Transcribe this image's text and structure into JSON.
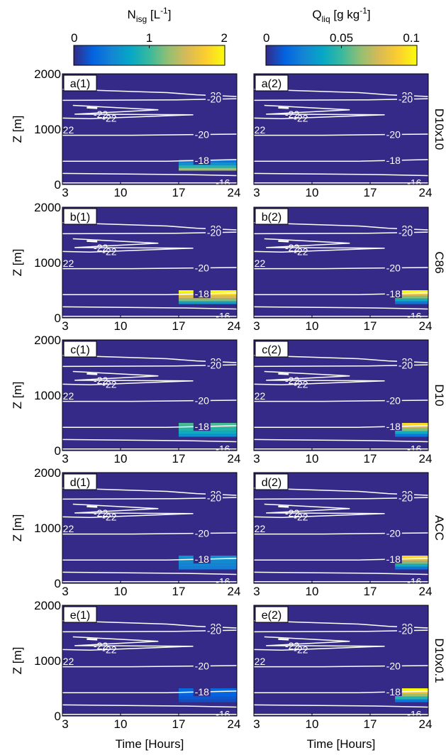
{
  "chart_data": {
    "type": "heatmap",
    "colormap": [
      "#352a87",
      "#0363e1",
      "#1485d4",
      "#06a7c6",
      "#38b99e",
      "#92bf73",
      "#d9ba56",
      "#fcce2e",
      "#f9fb0e"
    ],
    "background_color": "#352a87",
    "contour_color": "#ffffff",
    "colorbars": [
      {
        "title_main": "N",
        "title_sub": "isg",
        "title_unit_pre": " [L",
        "title_unit_sup": "-1",
        "title_unit_post": "]",
        "ticks": [
          "0",
          "1",
          "2"
        ],
        "range": [
          0,
          2
        ]
      },
      {
        "title_main": "Q",
        "title_sub": "liq",
        "title_unit_pre": " [g kg",
        "title_unit_sup": "-1",
        "title_unit_post": "]",
        "ticks": [
          "0",
          "0.05",
          "0.1"
        ],
        "range": [
          0,
          0.1
        ]
      }
    ],
    "xlabel": "Time [Hours]",
    "ylabel": "Z [m]",
    "xlim": [
      3,
      24
    ],
    "ylim": [
      0,
      2000
    ],
    "xticks": [
      "3",
      "10",
      "17",
      "24"
    ],
    "yticks": [
      "0",
      "1000",
      "2000"
    ],
    "rows": [
      "D10x10",
      "C86",
      "D10",
      "ACC",
      "D10x0.1"
    ],
    "contour_labels": [
      "-20",
      "-20",
      "-22",
      "-22",
      "-22",
      "-20",
      "-18",
      "-16"
    ],
    "panels": [
      {
        "label": "a(1)",
        "row": 0,
        "col": 0,
        "start_hour": 17,
        "values": [
          1.3,
          0.9,
          0.6,
          0.4,
          0.0
        ]
      },
      {
        "label": "a(2)",
        "row": 0,
        "col": 1,
        "start_hour": 17,
        "values": [
          0.0,
          0.0,
          0.0,
          0.0,
          0.0
        ]
      },
      {
        "label": "b(1)",
        "row": 1,
        "col": 0,
        "start_hour": 17,
        "values": [
          0.7,
          1.2,
          1.5,
          1.8,
          2.0
        ]
      },
      {
        "label": "b(2)",
        "row": 1,
        "col": 1,
        "start_hour": 20,
        "values": [
          0.02,
          0.04,
          0.06,
          0.08,
          0.1
        ]
      },
      {
        "label": "c(1)",
        "row": 2,
        "col": 0,
        "start_hour": 17,
        "values": [
          0.6,
          0.8,
          0.9,
          1.0,
          1.05
        ]
      },
      {
        "label": "c(2)",
        "row": 2,
        "col": 1,
        "start_hour": 20,
        "values": [
          0.02,
          0.04,
          0.06,
          0.075,
          0.09
        ]
      },
      {
        "label": "d(1)",
        "row": 3,
        "col": 0,
        "start_hour": 17,
        "values": [
          0.45,
          0.5,
          0.55,
          0.6,
          0.6
        ]
      },
      {
        "label": "d(2)",
        "row": 3,
        "col": 1,
        "start_hour": 20,
        "values": [
          0.02,
          0.04,
          0.06,
          0.075,
          0.09
        ]
      },
      {
        "label": "e(1)",
        "row": 4,
        "col": 0,
        "start_hour": 17,
        "values": [
          0.15,
          0.2,
          0.25,
          0.3,
          0.3
        ]
      },
      {
        "label": "e(2)",
        "row": 4,
        "col": 1,
        "start_hour": 20,
        "values": [
          0.02,
          0.045,
          0.065,
          0.085,
          0.1
        ]
      }
    ]
  }
}
